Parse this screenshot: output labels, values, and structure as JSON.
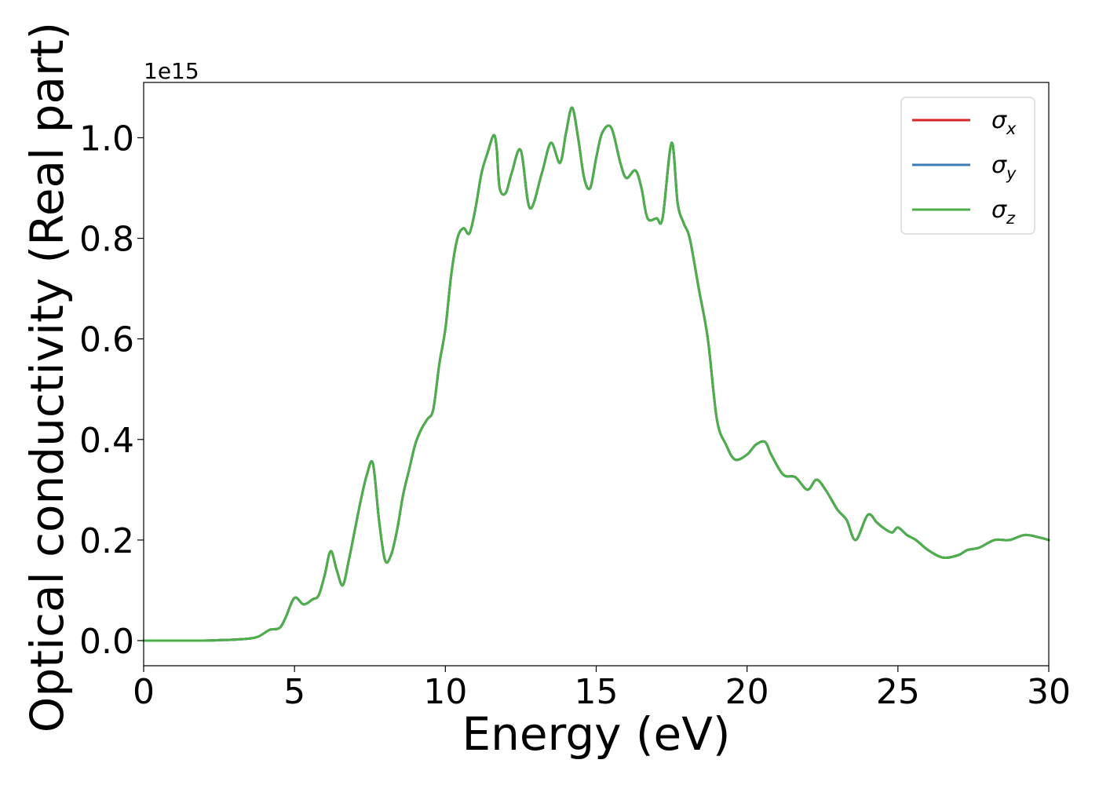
{
  "chart_data": {
    "type": "line",
    "xlabel": "Energy (eV)",
    "ylabel": "Optical conductivity (Real part)",
    "y_offset_label": "1e15",
    "xlim": [
      0,
      30
    ],
    "ylim": [
      -0.05,
      1.11
    ],
    "x_ticks": [
      0,
      5,
      10,
      15,
      20,
      25,
      30
    ],
    "y_ticks": [
      0.0,
      0.2,
      0.4,
      0.6,
      0.8,
      1.0
    ],
    "x_tick_labels": [
      "0",
      "5",
      "10",
      "15",
      "20",
      "25",
      "30"
    ],
    "y_tick_labels": [
      "0.0",
      "0.2",
      "0.4",
      "0.6",
      "0.8",
      "1.0"
    ],
    "grid": false,
    "legend_position": "top-right",
    "series": [
      {
        "name": "σx",
        "legend_symbol": "σ",
        "legend_subscript": "x",
        "color": "#d62728",
        "x": [
          0,
          1,
          2,
          2.5,
          3,
          3.5,
          3.8,
          4.0,
          4.2,
          4.5,
          4.7,
          5.0,
          5.3,
          5.6,
          5.8,
          6.0,
          6.2,
          6.4,
          6.6,
          6.8,
          7.0,
          7.2,
          7.4,
          7.6,
          7.8,
          8.0,
          8.2,
          8.4,
          8.6,
          8.8,
          9.0,
          9.2,
          9.4,
          9.6,
          9.8,
          10.0,
          10.2,
          10.4,
          10.6,
          10.8,
          11.0,
          11.2,
          11.4,
          11.6,
          11.7,
          11.8,
          12.0,
          12.2,
          12.5,
          12.8,
          13.2,
          13.5,
          13.8,
          14.0,
          14.2,
          14.4,
          14.6,
          14.8,
          15.0,
          15.2,
          15.5,
          15.8,
          16.0,
          16.3,
          16.5,
          16.7,
          17.0,
          17.2,
          17.5,
          17.7,
          17.9,
          18.1,
          18.4,
          18.7,
          19.0,
          19.3,
          19.6,
          20.0,
          20.3,
          20.6,
          20.8,
          21.2,
          21.6,
          22.0,
          22.3,
          22.6,
          23.0,
          23.3,
          23.6,
          24.0,
          24.3,
          24.5,
          24.8,
          25.0,
          25.3,
          25.6,
          26.0,
          26.5,
          27.0,
          27.3,
          27.7,
          28.2,
          28.7,
          29.2,
          29.7,
          30.0
        ],
        "values": [
          0,
          0,
          0,
          0.001,
          0.002,
          0.004,
          0.008,
          0.015,
          0.022,
          0.025,
          0.045,
          0.085,
          0.072,
          0.082,
          0.09,
          0.13,
          0.178,
          0.14,
          0.11,
          0.16,
          0.22,
          0.28,
          0.33,
          0.352,
          0.24,
          0.16,
          0.17,
          0.22,
          0.29,
          0.34,
          0.39,
          0.42,
          0.44,
          0.46,
          0.55,
          0.62,
          0.73,
          0.8,
          0.82,
          0.81,
          0.86,
          0.93,
          0.97,
          1.005,
          0.98,
          0.9,
          0.89,
          0.93,
          0.975,
          0.86,
          0.93,
          0.99,
          0.95,
          1.01,
          1.06,
          1.0,
          0.92,
          0.9,
          0.96,
          1.01,
          1.02,
          0.95,
          0.92,
          0.935,
          0.9,
          0.84,
          0.84,
          0.84,
          0.99,
          0.87,
          0.83,
          0.8,
          0.7,
          0.6,
          0.44,
          0.39,
          0.36,
          0.37,
          0.39,
          0.395,
          0.37,
          0.33,
          0.325,
          0.3,
          0.32,
          0.3,
          0.26,
          0.24,
          0.2,
          0.25,
          0.235,
          0.225,
          0.215,
          0.225,
          0.21,
          0.2,
          0.18,
          0.165,
          0.17,
          0.18,
          0.185,
          0.2,
          0.2,
          0.21,
          0.205,
          0.2
        ]
      },
      {
        "name": "σy",
        "legend_symbol": "σ",
        "legend_subscript": "y",
        "color": "#3d7bb5",
        "same_as": "σx"
      },
      {
        "name": "σz",
        "legend_symbol": "σ",
        "legend_subscript": "z",
        "color": "#4daf4a",
        "same_as": "σx"
      }
    ]
  }
}
